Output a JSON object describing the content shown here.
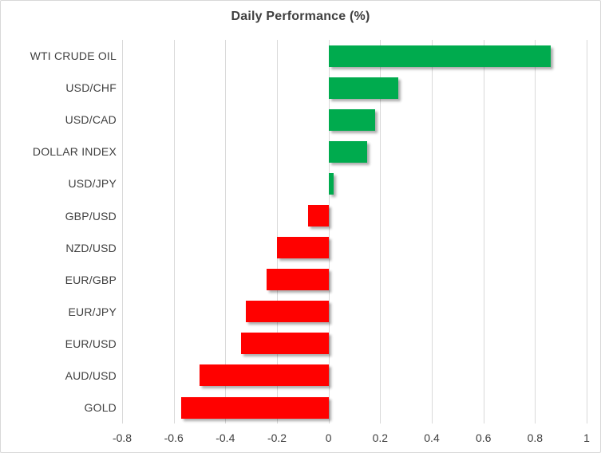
{
  "chart_data": {
    "type": "bar",
    "orientation": "horizontal",
    "title": "Daily Performance (%)",
    "categories": [
      "WTI CRUDE OIL",
      "USD/CHF",
      "USD/CAD",
      "DOLLAR INDEX",
      "USD/JPY",
      "GBP/USD",
      "NZD/USD",
      "EUR/GBP",
      "EUR/JPY",
      "EUR/USD",
      "AUD/USD",
      "GOLD"
    ],
    "values": [
      0.86,
      0.27,
      0.18,
      0.15,
      0.02,
      -0.08,
      -0.2,
      -0.24,
      -0.32,
      -0.34,
      -0.5,
      -0.57
    ],
    "xlim": [
      -0.8,
      1.0
    ],
    "x_ticks": [
      -0.8,
      -0.6,
      -0.4,
      -0.2,
      0,
      0.2,
      0.4,
      0.6,
      0.8,
      1
    ],
    "x_tick_labels": [
      "-0.8",
      "-0.6",
      "-0.4",
      "-0.2",
      "0",
      "0.2",
      "0.4",
      "0.6",
      "0.8",
      "1"
    ],
    "xlabel": "",
    "ylabel": "",
    "grid": "vertical-only",
    "legend": "none",
    "colors": {
      "positive": "#00AB4E",
      "negative": "#FF0100",
      "gridline": "#d9d9d9",
      "label": "#404040",
      "title": "#3f3f3f"
    }
  }
}
